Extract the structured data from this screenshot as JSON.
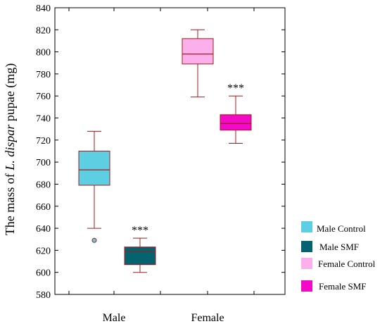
{
  "chart_data": {
    "type": "box",
    "ylabel_parts": [
      "The mass of ",
      "L. dispar",
      " pupae (mg)"
    ],
    "ylim": [
      580,
      840
    ],
    "yticks": [
      580,
      600,
      620,
      640,
      660,
      680,
      700,
      720,
      740,
      760,
      780,
      800,
      820,
      840
    ],
    "categories": [
      "Male",
      "Female"
    ],
    "boxes": [
      {
        "name": "Male Control",
        "category": "Male",
        "color": "#5ecfe3",
        "whisker_low": 640,
        "q1": 679,
        "median": 693,
        "q3": 710,
        "whisker_high": 728,
        "outliers": [
          629
        ],
        "significance": ""
      },
      {
        "name": "Male SMF",
        "category": "Male",
        "color": "#05636f",
        "whisker_low": 600,
        "q1": 607,
        "median": 619,
        "q3": 623,
        "whisker_high": 631,
        "outliers": [],
        "significance": "***"
      },
      {
        "name": "Female Control",
        "category": "Female",
        "color": "#fbb0ec",
        "whisker_low": 759,
        "q1": 789,
        "median": 798,
        "q3": 812,
        "whisker_high": 820,
        "outliers": [],
        "significance": ""
      },
      {
        "name": "Female SMF",
        "category": "Female",
        "color": "#f20ac8",
        "whisker_low": 717,
        "q1": 729,
        "median": 735,
        "q3": 743,
        "whisker_high": 760,
        "outliers": [],
        "significance": "***"
      }
    ],
    "legend_placement": "right-bottom",
    "grid": false,
    "box_edge_color": "#a01c1c"
  }
}
